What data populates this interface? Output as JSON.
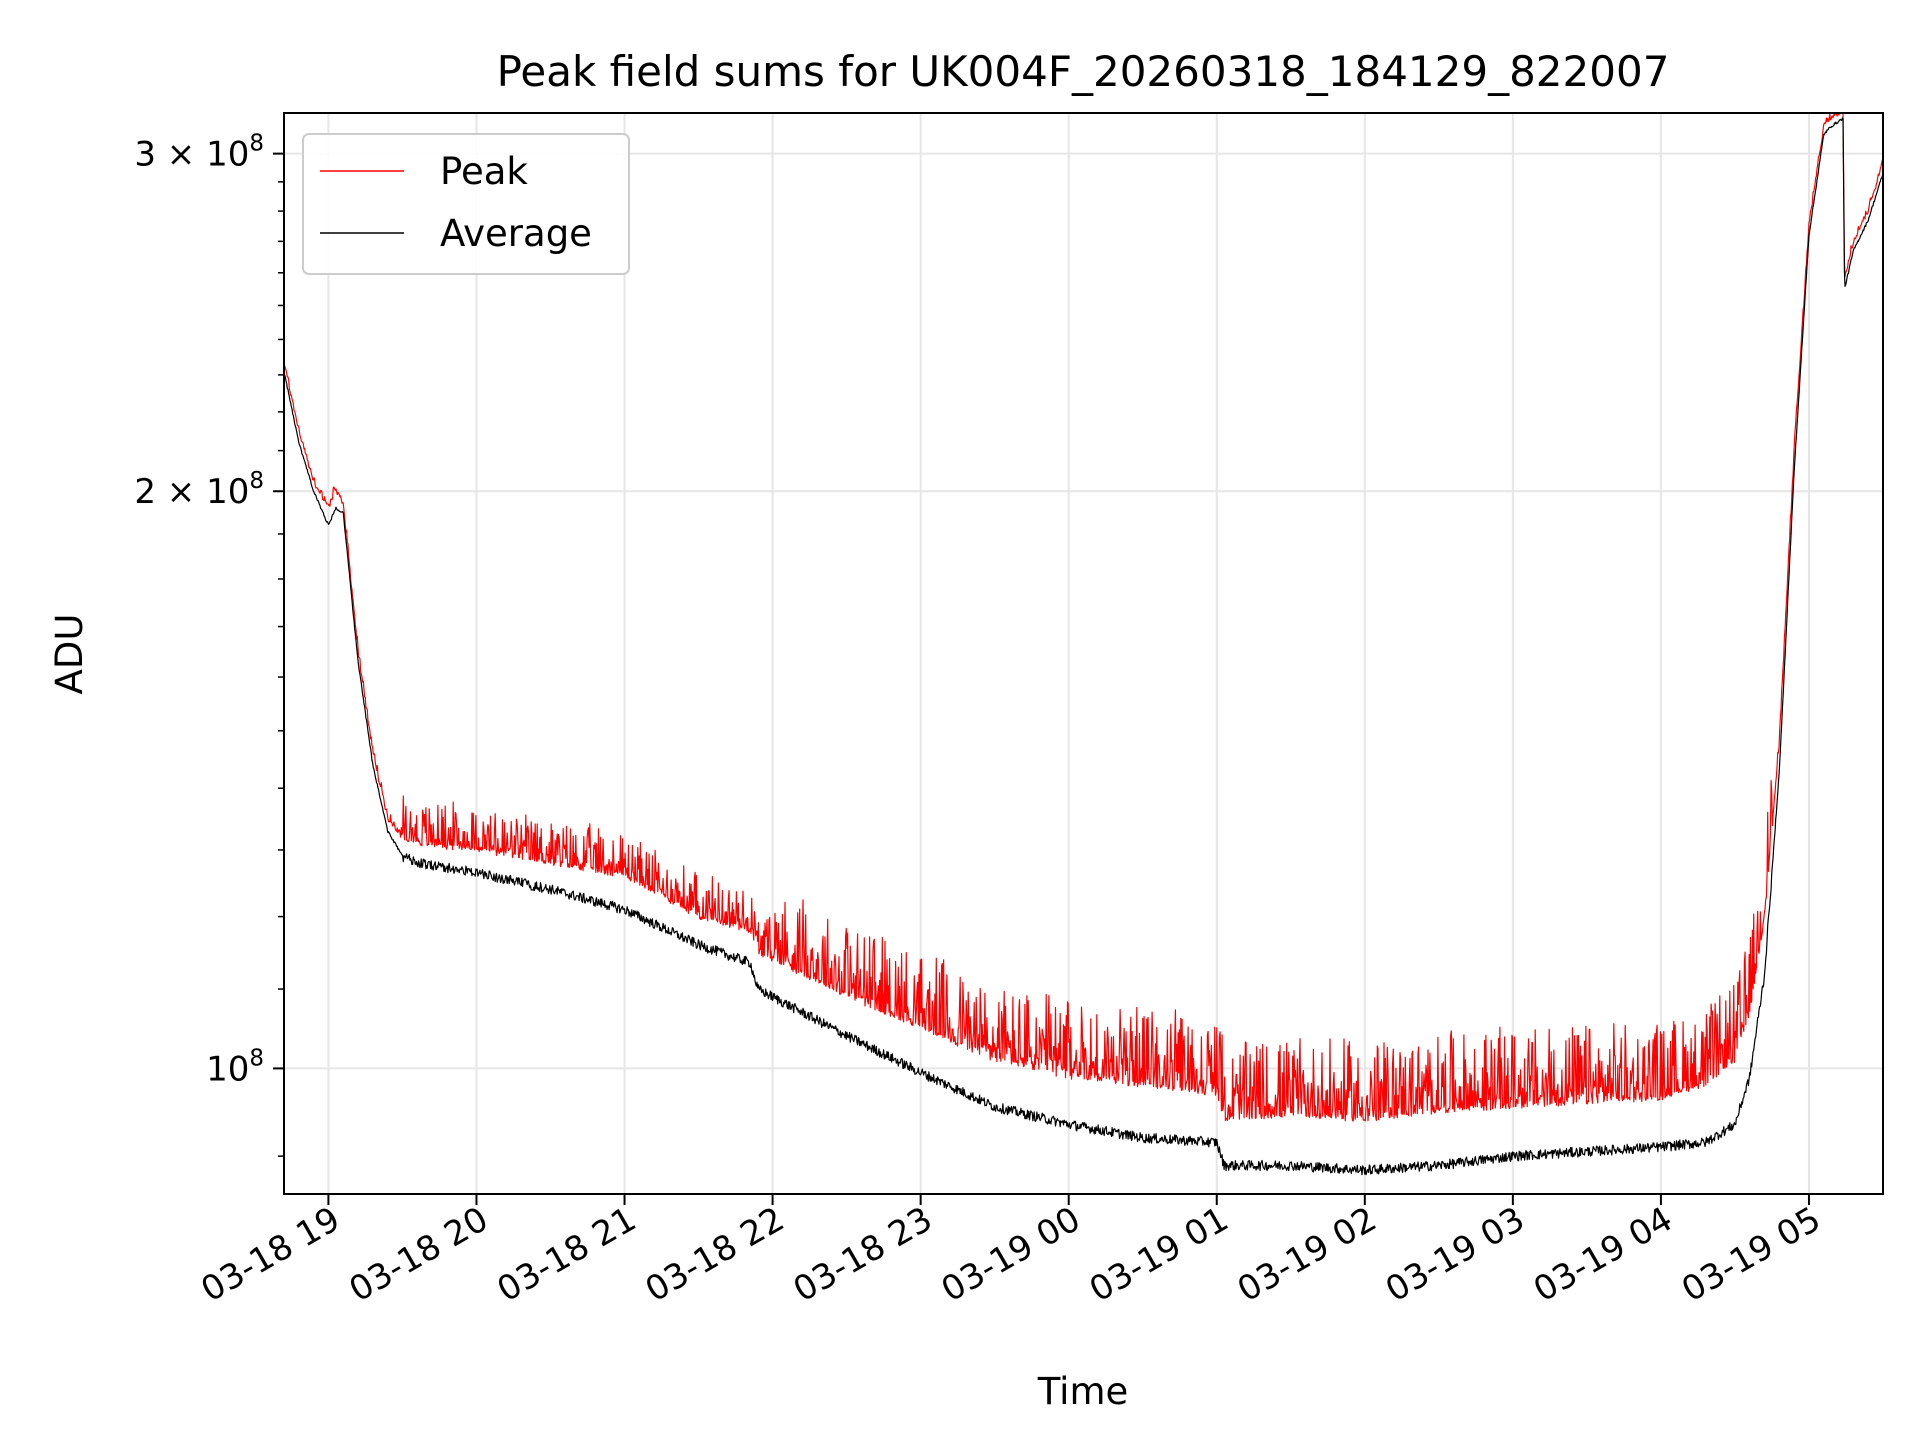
{
  "chart_data": {
    "type": "line",
    "title": "Peak field sums for UK004F_20260318_184129_822007",
    "xlabel": "Time",
    "ylabel": "ADU",
    "x_unit": "hours since 03-18 18:00",
    "xlim": [
      18.7,
      29.5
    ],
    "ylim": [
      86000000,
      315000000
    ],
    "y_scale": "log",
    "grid": true,
    "legend_position": "upper-left",
    "x_ticks": [
      {
        "value": 19,
        "label": "03-18 19"
      },
      {
        "value": 20,
        "label": "03-18 20"
      },
      {
        "value": 21,
        "label": "03-18 21"
      },
      {
        "value": 22,
        "label": "03-18 22"
      },
      {
        "value": 23,
        "label": "03-18 23"
      },
      {
        "value": 24,
        "label": "03-19 00"
      },
      {
        "value": 25,
        "label": "03-19 01"
      },
      {
        "value": 26,
        "label": "03-19 02"
      },
      {
        "value": 27,
        "label": "03-19 03"
      },
      {
        "value": 28,
        "label": "03-19 04"
      },
      {
        "value": 29,
        "label": "03-19 05"
      }
    ],
    "y_ticks": [
      {
        "value": 100000000,
        "mantissa": "",
        "exponent": "8"
      },
      {
        "value": 200000000,
        "mantissa": "2",
        "exponent": "8"
      },
      {
        "value": 300000000,
        "mantissa": "3",
        "exponent": "8"
      }
    ],
    "series": [
      {
        "name": "Peak",
        "color": "#ff0000",
        "x": [
          18.7,
          18.8,
          18.9,
          19.0,
          19.05,
          19.1,
          19.2,
          19.3,
          19.4,
          19.5,
          19.6,
          20.0,
          20.5,
          21.0,
          21.5,
          21.85,
          21.9,
          22.5,
          23.0,
          23.5,
          24.0,
          24.5,
          25.0,
          25.05,
          25.5,
          26.0,
          26.5,
          27.0,
          27.5,
          28.0,
          28.3,
          28.5,
          28.6,
          28.7,
          28.8,
          28.9,
          29.0,
          29.1,
          29.15,
          29.23,
          29.24,
          29.3,
          29.4,
          29.5
        ],
        "y": [
          233000000,
          215000000,
          202000000,
          196000000,
          200000000,
          197000000,
          165000000,
          146000000,
          135000000,
          132000000,
          131000000,
          130000000,
          128000000,
          126000000,
          120000000,
          118000000,
          115000000,
          109000000,
          105000000,
          101000000,
          99000000,
          98000000,
          97000000,
          94000000,
          94500000,
          94000000,
          95000000,
          95500000,
          96000000,
          96500000,
          98000000,
          101000000,
          107000000,
          120000000,
          148000000,
          210000000,
          275000000,
          310000000,
          313000000,
          316000000,
          258000000,
          270000000,
          280000000,
          297000000
        ]
      },
      {
        "name": "Average",
        "color": "#000000",
        "x": [
          18.7,
          18.8,
          18.9,
          19.0,
          19.05,
          19.1,
          19.2,
          19.3,
          19.4,
          19.5,
          19.6,
          20.0,
          20.5,
          21.0,
          21.5,
          21.85,
          21.9,
          22.5,
          23.0,
          23.5,
          24.0,
          24.5,
          25.0,
          25.05,
          25.5,
          26.0,
          26.5,
          27.0,
          27.5,
          28.0,
          28.3,
          28.5,
          28.6,
          28.7,
          28.8,
          28.9,
          29.0,
          29.1,
          29.15,
          29.23,
          29.24,
          29.3,
          29.4,
          29.5
        ],
        "y": [
          231000000,
          212000000,
          200000000,
          192000000,
          196000000,
          195000000,
          163000000,
          144000000,
          133000000,
          129000000,
          128000000,
          126500000,
          124000000,
          121000000,
          116000000,
          113500000,
          110000000,
          104000000,
          99500000,
          95500000,
          93500000,
          92000000,
          91500000,
          89000000,
          89000000,
          88500000,
          89000000,
          90000000,
          90500000,
          91000000,
          91500000,
          93500000,
          99000000,
          112000000,
          143000000,
          205000000,
          272000000,
          307000000,
          310000000,
          313000000,
          255000000,
          267000000,
          277000000,
          293000000
        ]
      }
    ]
  }
}
